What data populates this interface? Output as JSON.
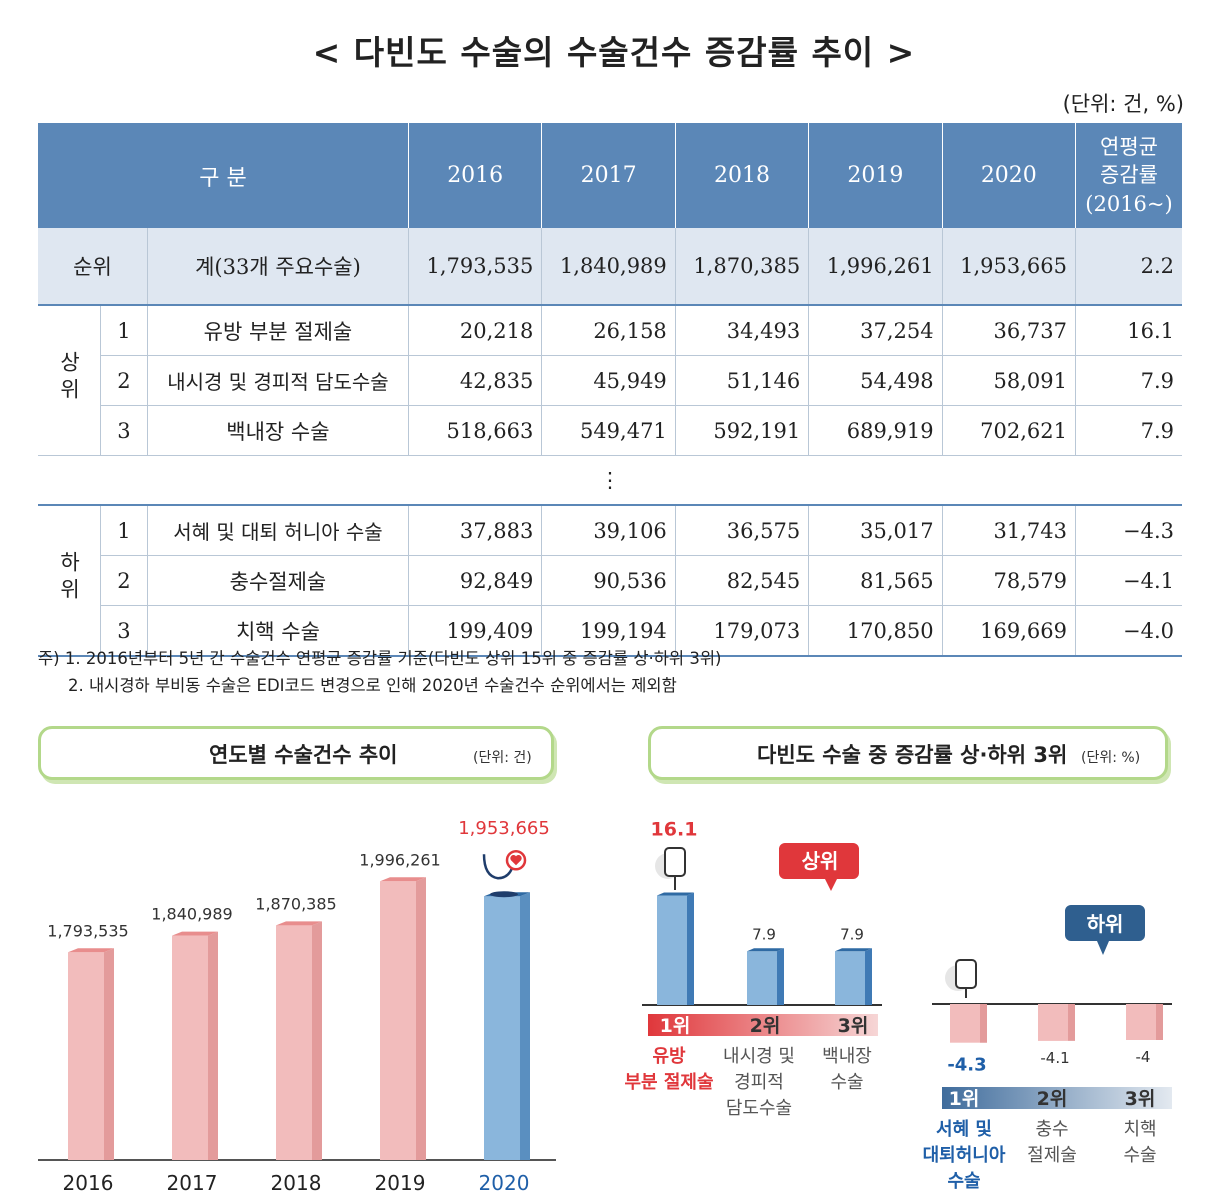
{
  "title": "< 다빈도 수술의 수술건수 증감률 추이 >",
  "unit": "(단위: 건, %)",
  "table": {
    "headers": [
      "구 분",
      "2016",
      "2017",
      "2018",
      "2019",
      "2020",
      "연평균\n증감률\n(2016~)"
    ],
    "total": {
      "rank_label": "순위",
      "label": "계(33개 주요수술)",
      "values": [
        "1,793,535",
        "1,840,989",
        "1,870,385",
        "1,996,261",
        "1,953,665",
        "2.2"
      ]
    },
    "top_group": "상위",
    "top": [
      {
        "rank": "1",
        "name": "유방 부분 절제술",
        "values": [
          "20,218",
          "26,158",
          "34,493",
          "37,254",
          "36,737",
          "16.1"
        ]
      },
      {
        "rank": "2",
        "name": "내시경 및 경피적 담도수술",
        "values": [
          "42,835",
          "45,949",
          "51,146",
          "54,498",
          "58,091",
          "7.9"
        ]
      },
      {
        "rank": "3",
        "name": "백내장 수술",
        "values": [
          "518,663",
          "549,471",
          "592,191",
          "689,919",
          "702,621",
          "7.9"
        ]
      }
    ],
    "ellipsis": "⋮",
    "bottom_group": "하위",
    "bottom": [
      {
        "rank": "1",
        "name": "서혜 및 대퇴 허니아 수술",
        "values": [
          "37,883",
          "39,106",
          "36,575",
          "35,017",
          "31,743",
          "−4.3"
        ]
      },
      {
        "rank": "2",
        "name": "충수절제술",
        "values": [
          "92,849",
          "90,536",
          "82,545",
          "81,565",
          "78,579",
          "−4.1"
        ]
      },
      {
        "rank": "3",
        "name": "치핵 수술",
        "values": [
          "199,409",
          "199,194",
          "179,073",
          "170,850",
          "169,669",
          "−4.0"
        ]
      }
    ]
  },
  "notes": [
    "주) 1. 2016년부터 5년 간 수술건수 연평균 증감률 기준(다빈도 상위 15위 중 증감률 상·하위 3위)",
    "2. 내시경하 부비동 수술은 EDI코드 변경으로 인해 2020년 수술건수 순위에서는 제외함"
  ],
  "left_panel": {
    "title": "연도별 수술건수 추이",
    "unit": "(단위: 건)"
  },
  "right_panel": {
    "title": "다빈도 수술 중 증감률 상·하위 3위",
    "unit": "(단위: %)"
  },
  "colors": {
    "header": "#5b87b7",
    "pink": "#f2bcbc",
    "blue": "#8ab6dc",
    "red": "#e0373b",
    "green_border": "#b3d88a"
  },
  "icons": [
    "stethoscope-heart-icon",
    "iv-bag-icon",
    "speech-bubble-icon"
  ],
  "chart_data": [
    {
      "type": "bar",
      "title": "연도별 수술건수 추이",
      "categories": [
        "2016",
        "2017",
        "2018",
        "2019",
        "2020"
      ],
      "values": [
        1793535,
        1840989,
        1870385,
        1996261,
        1953665
      ],
      "labels": [
        "1,793,535",
        "1,840,989",
        "1,870,385",
        "1,996,261",
        "1,953,665"
      ],
      "highlight": "2020"
    },
    {
      "type": "bar",
      "title": "다빈도 수술 중 증감률 상·하위 3위",
      "groups": [
        {
          "name": "상위",
          "items": [
            {
              "rank": "1위",
              "name": [
                "유방",
                "부분 절제술"
              ],
              "value": 16.1
            },
            {
              "rank": "2위",
              "name": [
                "내시경 및",
                "경피적",
                "담도수술"
              ],
              "value": 7.9
            },
            {
              "rank": "3위",
              "name": [
                "백내장",
                "수술"
              ],
              "value": 7.9
            }
          ]
        },
        {
          "name": "하위",
          "items": [
            {
              "rank": "1위",
              "name": [
                "서혜 및",
                "대퇴허니아",
                "수술"
              ],
              "value": -4.3
            },
            {
              "rank": "2위",
              "name": [
                "충수",
                "절제술"
              ],
              "value": -4.1
            },
            {
              "rank": "3위",
              "name": [
                "치핵",
                "수술"
              ],
              "value": -4.0
            }
          ]
        }
      ]
    }
  ]
}
